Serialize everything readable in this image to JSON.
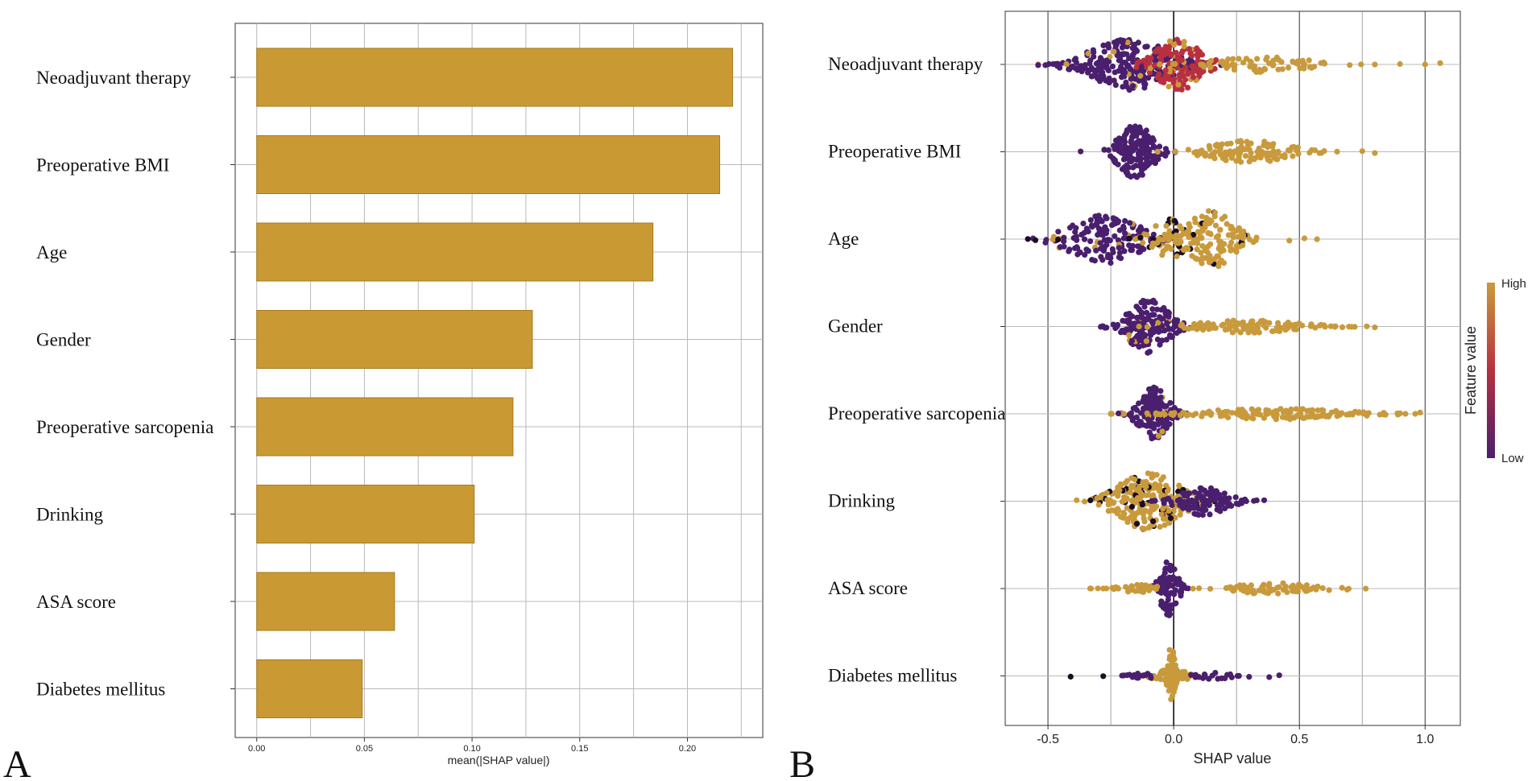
{
  "colors": {
    "bar": "#c99a34",
    "bar_edge": "#a87a1c",
    "high": "#c99a3c",
    "mid": "#b8303f",
    "low": "#4a1f6e",
    "dark": "#1a0d24",
    "grid": "#b8b8b8"
  },
  "panel_labels": {
    "a": "A",
    "b": "B"
  },
  "chart_data": [
    {
      "type": "bar",
      "orientation": "horizontal",
      "panel": "A",
      "categories": [
        "Neoadjuvant therapy",
        "Preoperative BMI",
        "Age",
        "Gender",
        "Preoperative sarcopenia",
        "Drinking",
        "ASA score",
        "Diabetes mellitus"
      ],
      "values": [
        0.221,
        0.215,
        0.184,
        0.128,
        0.119,
        0.101,
        0.064,
        0.049
      ],
      "xlabel": "mean(|SHAP value|)",
      "xlim": [
        -0.01,
        0.235
      ],
      "xticks": [
        0.0,
        0.05,
        0.1,
        0.15,
        0.2
      ],
      "xtick_labels": [
        "0.00",
        "0.05",
        "0.10",
        "0.15",
        "0.20"
      ]
    },
    {
      "type": "scatter",
      "subtype": "beeswarm",
      "panel": "B",
      "categories": [
        "Neoadjuvant therapy",
        "Preoperative BMI",
        "Age",
        "Gender",
        "Preoperative sarcopenia",
        "Drinking",
        "ASA score",
        "Diabetes mellitus"
      ],
      "xlabel": "SHAP value",
      "xlim": [
        -0.67,
        1.14
      ],
      "xticks": [
        -0.5,
        0.0,
        0.5,
        1.0
      ],
      "xtick_labels": [
        "-0.5",
        "0.0",
        "0.5",
        "1.0"
      ],
      "legend": {
        "title": "Feature value",
        "high": "High",
        "low": "Low",
        "position": "right"
      },
      "features": [
        {
          "name": "Neoadjuvant therapy",
          "clusters": [
            {
              "center": -0.175,
              "spread": 0.14,
              "halfwidth": 32,
              "n": 260,
              "value": "low",
              "mixH": 0.05
            },
            {
              "center": 0.02,
              "spread": 0.08,
              "halfwidth": 32,
              "n": 140,
              "value": "mid",
              "mixH": 0.08
            },
            {
              "center": 0.36,
              "spread": 0.16,
              "halfwidth": 10,
              "n": 70,
              "value": "high"
            }
          ],
          "outliers": [
            [
              -0.51,
              "low"
            ],
            [
              -0.47,
              "low"
            ],
            [
              0.52,
              "high"
            ],
            [
              0.6,
              "high"
            ],
            [
              0.7,
              "high"
            ],
            [
              0.8,
              "high"
            ],
            [
              0.9,
              "high"
            ],
            [
              1.0,
              "high"
            ],
            [
              1.06,
              "high"
            ]
          ]
        },
        {
          "name": "Preoperative BMI",
          "clusters": [
            {
              "center": -0.15,
              "spread": 0.06,
              "halfwidth": 34,
              "n": 170,
              "value": "low"
            },
            {
              "center": 0.3,
              "spread": 0.14,
              "halfwidth": 14,
              "n": 120,
              "value": "high"
            }
          ],
          "outliers": [
            [
              -0.37,
              "low"
            ],
            [
              0.58,
              "high"
            ],
            [
              0.65,
              "high"
            ],
            [
              0.75,
              "high"
            ],
            [
              0.8,
              "high"
            ]
          ]
        },
        {
          "name": "Age",
          "clusters": [
            {
              "center": -0.27,
              "spread": 0.13,
              "halfwidth": 30,
              "n": 160,
              "value": "low",
              "mixH": 0.06
            },
            {
              "center": -0.02,
              "spread": 0.06,
              "halfwidth": 26,
              "n": 60,
              "value": "high",
              "mixD": 0.2
            },
            {
              "center": 0.15,
              "spread": 0.08,
              "halfwidth": 36,
              "n": 140,
              "value": "high",
              "mixD": 0.06
            }
          ],
          "outliers": [
            [
              -0.58,
              "dark"
            ],
            [
              -0.55,
              "dark"
            ],
            [
              -0.46,
              "dark"
            ],
            [
              0.46,
              "high"
            ],
            [
              0.52,
              "high"
            ],
            [
              0.57,
              "high"
            ]
          ]
        },
        {
          "name": "Gender",
          "clusters": [
            {
              "center": -0.1,
              "spread": 0.07,
              "halfwidth": 34,
              "n": 170,
              "value": "low",
              "mixH": 0.06
            },
            {
              "center": 0.3,
              "spread": 0.18,
              "halfwidth": 8,
              "n": 110,
              "value": "high"
            }
          ],
          "outliers": [
            [
              -0.29,
              "low"
            ],
            [
              0.64,
              "high"
            ],
            [
              0.72,
              "high"
            ],
            [
              0.8,
              "high"
            ]
          ]
        },
        {
          "name": "Preoperative sarcopenia",
          "clusters": [
            {
              "center": -0.08,
              "spread": 0.05,
              "halfwidth": 34,
              "n": 150,
              "value": "low",
              "mixH": 0.04
            },
            {
              "center": 0.4,
              "spread": 0.25,
              "halfwidth": 7,
              "n": 150,
              "value": "high"
            }
          ],
          "outliers": [
            [
              -0.22,
              "low"
            ],
            [
              0.82,
              "high"
            ],
            [
              0.89,
              "high"
            ],
            [
              0.98,
              "high"
            ]
          ]
        },
        {
          "name": "Drinking",
          "clusters": [
            {
              "center": -0.1,
              "spread": 0.11,
              "halfwidth": 36,
              "n": 260,
              "value": "high",
              "mixD": 0.18
            },
            {
              "center": 0.12,
              "spread": 0.08,
              "halfwidth": 18,
              "n": 110,
              "value": "low"
            }
          ],
          "outliers": [
            [
              0.33,
              "low"
            ],
            [
              0.36,
              "low"
            ]
          ]
        },
        {
          "name": "ASA score",
          "clusters": [
            {
              "center": -0.02,
              "spread": 0.03,
              "halfwidth": 34,
              "n": 90,
              "value": "low"
            },
            {
              "center": -0.15,
              "spread": 0.07,
              "halfwidth": 5,
              "n": 40,
              "value": "high"
            },
            {
              "center": 0.4,
              "spread": 0.14,
              "halfwidth": 7,
              "n": 80,
              "value": "high"
            }
          ],
          "outliers": [
            [
              -0.28,
              "high"
            ],
            [
              0.69,
              "high"
            ]
          ]
        },
        {
          "name": "Diabetes mellitus",
          "clusters": [
            {
              "center": -0.01,
              "spread": 0.012,
              "halfwidth": 38,
              "n": 80,
              "value": "high"
            },
            {
              "center": -0.01,
              "spread": 0.05,
              "halfwidth": 10,
              "n": 50,
              "value": "high"
            },
            {
              "center": -0.13,
              "spread": 0.04,
              "halfwidth": 4,
              "n": 15,
              "value": "low"
            },
            {
              "center": 0.16,
              "spread": 0.06,
              "halfwidth": 4,
              "n": 20,
              "value": "low"
            }
          ],
          "outliers": [
            [
              -0.41,
              "dark"
            ],
            [
              -0.28,
              "dark"
            ],
            [
              0.3,
              "low"
            ],
            [
              0.38,
              "low"
            ],
            [
              0.42,
              "low"
            ]
          ]
        }
      ]
    }
  ]
}
